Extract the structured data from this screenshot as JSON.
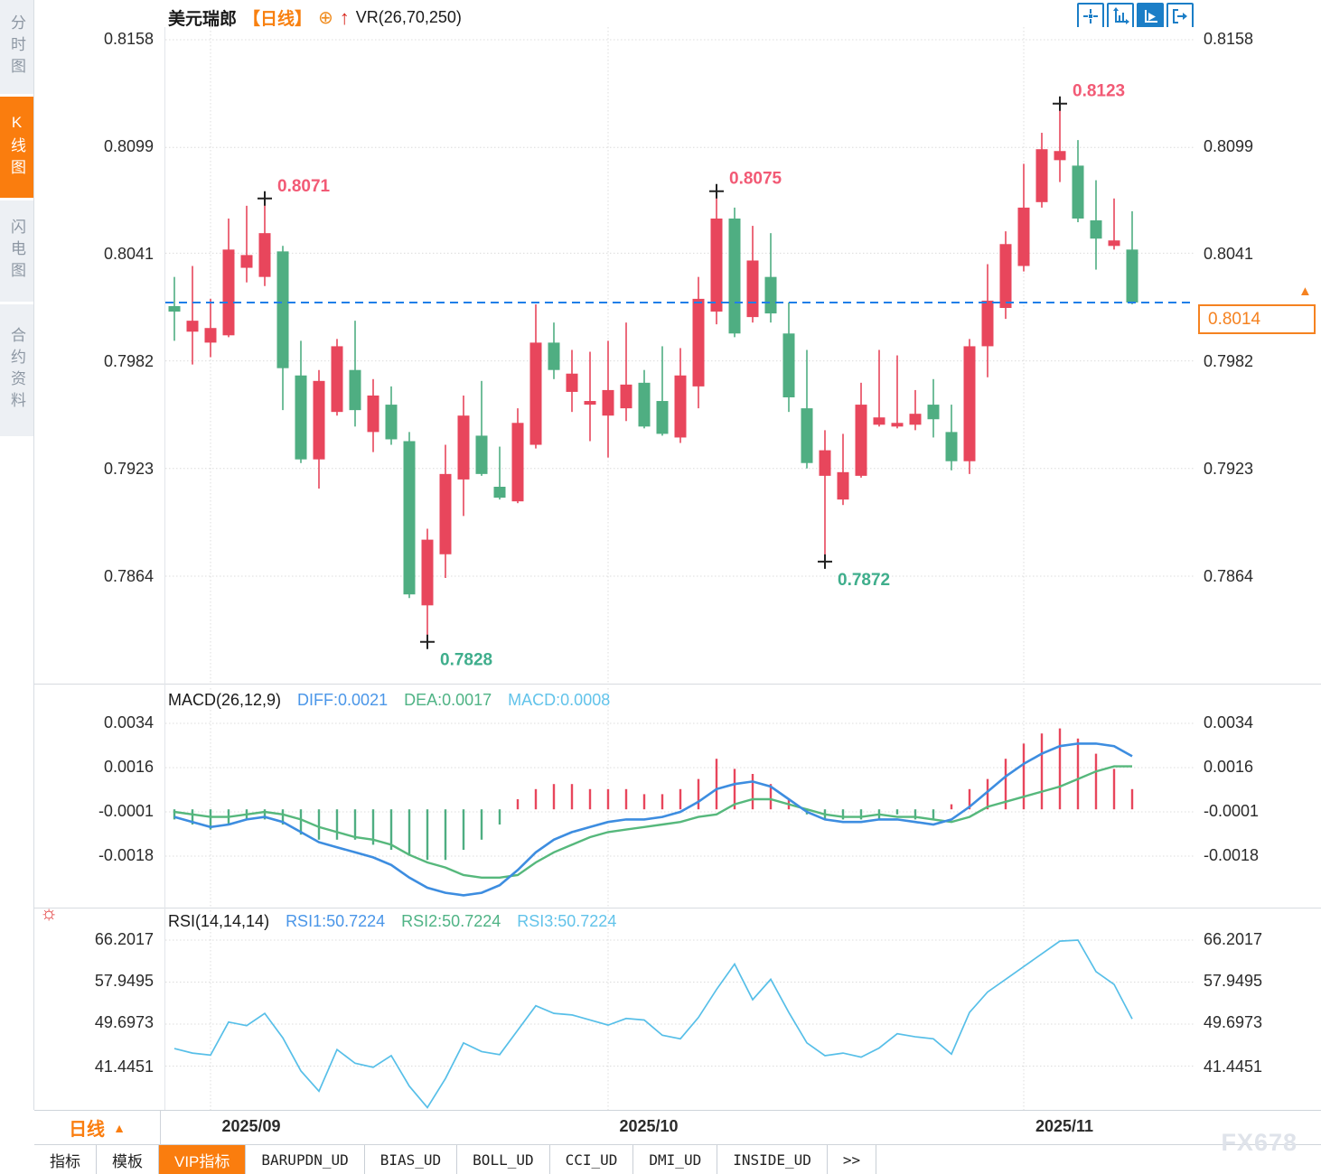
{
  "app": {
    "watermark": "FX678",
    "colors": {
      "up": "#e8465c",
      "down": "#4fae82",
      "accent_orange": "#fa7d0e",
      "dashed_line_blue": "#1f7fe8",
      "diff_blue": "#3d8de0",
      "dea_green": "#56b87c",
      "rsi_line_cyan": "#57bfe8",
      "annotation_high": "#f25a75",
      "annotation_low": "#3fae8c",
      "grid": "#dcdcdc"
    }
  },
  "sidebar": {
    "items": [
      {
        "label": "分时图",
        "active": false
      },
      {
        "label": "K线图",
        "active": true
      },
      {
        "label": "闪电图",
        "active": false
      },
      {
        "label": "合约资料",
        "active": false
      }
    ]
  },
  "header": {
    "symbol": "美元瑞郎",
    "period": "【日线】",
    "target_icon": "⊕",
    "arrow_icon": "↑",
    "indicator": "VR(26,70,250)"
  },
  "toolbar": {
    "buttons": [
      {
        "name": "crosshair-tool",
        "active": false
      },
      {
        "name": "axis-zoom-tool",
        "active": false
      },
      {
        "name": "auto-fit-tool",
        "active": true
      },
      {
        "name": "pan-tool",
        "active": false
      }
    ]
  },
  "current_price": {
    "value": "0.8014",
    "arrow": "▲"
  },
  "period_selector": {
    "label": "日线",
    "arrow": "▲"
  },
  "panels": {
    "main": {
      "y_labels": [
        "0.8158",
        "0.8099",
        "0.8041",
        "0.7982",
        "0.7923",
        "0.7864"
      ]
    },
    "macd": {
      "title": "MACD(26,12,9)",
      "diff_label": "DIFF:0.0021",
      "dea_label": "DEA:0.0017",
      "macd_label": "MACD:0.0008",
      "y_labels": [
        "0.0034",
        "0.0016",
        "-0.0001",
        "-0.0018"
      ]
    },
    "rsi": {
      "title": "RSI(14,14,14)",
      "rsi1_label": "RSI1:50.7224",
      "rsi2_label": "RSI2:50.7224",
      "rsi3_label": "RSI3:50.7224",
      "y_labels": [
        "66.2017",
        "57.9495",
        "49.6973",
        "41.4451"
      ]
    }
  },
  "bottom_tabs": {
    "items": [
      {
        "label": "指标",
        "active": false,
        "mono": false
      },
      {
        "label": "模板",
        "active": false,
        "mono": false
      },
      {
        "label": "VIP指标",
        "active": true,
        "mono": false
      },
      {
        "label": "BARUPDN_UD",
        "active": false,
        "mono": true
      },
      {
        "label": "BIAS_UD",
        "active": false,
        "mono": true
      },
      {
        "label": "BOLL_UD",
        "active": false,
        "mono": true
      },
      {
        "label": "CCI_UD",
        "active": false,
        "mono": true
      },
      {
        "label": "DMI_UD",
        "active": false,
        "mono": true
      },
      {
        "label": "INSIDE_UD",
        "active": false,
        "mono": true
      },
      {
        "label": ">>",
        "active": false,
        "mono": true
      }
    ]
  },
  "chart_data": [
    {
      "type": "candlestick",
      "title": "美元瑞郎 日线",
      "y_axis": {
        "min": 0.782,
        "max": 0.8165,
        "ticks": [
          0.8158,
          0.8099,
          0.8041,
          0.7982,
          0.7923,
          0.7864
        ]
      },
      "x_ticks": [
        {
          "label": "2025/09",
          "candle_index": 2
        },
        {
          "label": "2025/10",
          "candle_index": 24
        },
        {
          "label": "2025/11",
          "candle_index": 47
        }
      ],
      "current_price": 0.8014,
      "annotations": [
        {
          "candle_index": 5,
          "label": "0.8071",
          "type": "high"
        },
        {
          "candle_index": 30,
          "label": "0.8075",
          "type": "high"
        },
        {
          "candle_index": 49,
          "label": "0.8123",
          "type": "high"
        },
        {
          "candle_index": 14,
          "label": "0.7828",
          "type": "low"
        },
        {
          "candle_index": 36,
          "label": "0.7872",
          "type": "low"
        }
      ],
      "ohlc": [
        [
          0.8012,
          0.8028,
          0.7993,
          0.8009
        ],
        [
          0.7998,
          0.8034,
          0.798,
          0.8004
        ],
        [
          0.7992,
          0.8016,
          0.7984,
          0.8
        ],
        [
          0.7996,
          0.806,
          0.7995,
          0.8043
        ],
        [
          0.8033,
          0.8067,
          0.8025,
          0.804
        ],
        [
          0.8028,
          0.8071,
          0.8023,
          0.8052
        ],
        [
          0.8042,
          0.8045,
          0.7955,
          0.7978
        ],
        [
          0.7974,
          0.7993,
          0.7926,
          0.7928
        ],
        [
          0.7928,
          0.7977,
          0.7912,
          0.7971
        ],
        [
          0.7954,
          0.7994,
          0.7952,
          0.799
        ],
        [
          0.7977,
          0.8004,
          0.7946,
          0.7955
        ],
        [
          0.7943,
          0.7972,
          0.7932,
          0.7963
        ],
        [
          0.7958,
          0.7968,
          0.7936,
          0.7939
        ],
        [
          0.7938,
          0.7943,
          0.7852,
          0.7854
        ],
        [
          0.7848,
          0.789,
          0.7828,
          0.7884
        ],
        [
          0.7876,
          0.7936,
          0.7863,
          0.792
        ],
        [
          0.7917,
          0.7963,
          0.7897,
          0.7952
        ],
        [
          0.7941,
          0.7971,
          0.7919,
          0.792
        ],
        [
          0.7913,
          0.7935,
          0.7906,
          0.7907
        ],
        [
          0.7905,
          0.7956,
          0.7904,
          0.7948
        ],
        [
          0.7936,
          0.8013,
          0.7934,
          0.7992
        ],
        [
          0.7992,
          0.8003,
          0.7972,
          0.7977
        ],
        [
          0.7965,
          0.7988,
          0.7954,
          0.7975
        ],
        [
          0.7958,
          0.7987,
          0.7938,
          0.796
        ],
        [
          0.7952,
          0.7993,
          0.7929,
          0.7966
        ],
        [
          0.7956,
          0.8003,
          0.7949,
          0.7969
        ],
        [
          0.797,
          0.7977,
          0.7945,
          0.7946
        ],
        [
          0.796,
          0.799,
          0.7941,
          0.7942
        ],
        [
          0.794,
          0.7989,
          0.7937,
          0.7974
        ],
        [
          0.7968,
          0.8028,
          0.7956,
          0.8016
        ],
        [
          0.8009,
          0.8075,
          0.8002,
          0.806
        ],
        [
          0.806,
          0.8066,
          0.7995,
          0.7997
        ],
        [
          0.8006,
          0.8056,
          0.8003,
          0.8037
        ],
        [
          0.8028,
          0.8052,
          0.8003,
          0.8008
        ],
        [
          0.7997,
          0.8014,
          0.7954,
          0.7962
        ],
        [
          0.7956,
          0.7988,
          0.7923,
          0.7926
        ],
        [
          0.7919,
          0.7944,
          0.7872,
          0.7933
        ],
        [
          0.7906,
          0.7942,
          0.7903,
          0.7921
        ],
        [
          0.7919,
          0.797,
          0.7918,
          0.7958
        ],
        [
          0.7947,
          0.7988,
          0.7946,
          0.7951
        ],
        [
          0.7946,
          0.7985,
          0.7945,
          0.7948
        ],
        [
          0.7947,
          0.7966,
          0.7944,
          0.7953
        ],
        [
          0.7958,
          0.7972,
          0.794,
          0.795
        ],
        [
          0.7943,
          0.7958,
          0.7922,
          0.7927
        ],
        [
          0.7927,
          0.7994,
          0.792,
          0.799
        ],
        [
          0.799,
          0.8035,
          0.7973,
          0.8015
        ],
        [
          0.8011,
          0.8053,
          0.8005,
          0.8046
        ],
        [
          0.8034,
          0.809,
          0.8031,
          0.8066
        ],
        [
          0.8069,
          0.8107,
          0.8066,
          0.8098
        ],
        [
          0.8092,
          0.8123,
          0.808,
          0.8097
        ],
        [
          0.8089,
          0.8103,
          0.8058,
          0.806
        ],
        [
          0.8059,
          0.8081,
          0.8032,
          0.8049
        ],
        [
          0.8045,
          0.8071,
          0.8043,
          0.8048
        ],
        [
          0.8043,
          0.8064,
          0.8013,
          0.8014
        ]
      ]
    },
    {
      "type": "bar",
      "name": "MACD",
      "params": "(26,12,9)",
      "latest": {
        "DIFF": 0.0021,
        "DEA": 0.0017,
        "MACD": 0.0008
      },
      "y_ticks": [
        0.0034,
        0.0016,
        -0.0001,
        -0.0018
      ],
      "series": [
        {
          "name": "DIFF",
          "values": [
            -0.0003,
            -0.0005,
            -0.0007,
            -0.0006,
            -0.0004,
            -0.0003,
            -0.0005,
            -0.0009,
            -0.0013,
            -0.0015,
            -0.0017,
            -0.0019,
            -0.0022,
            -0.0027,
            -0.0031,
            -0.0033,
            -0.0034,
            -0.0033,
            -0.003,
            -0.0024,
            -0.0017,
            -0.0012,
            -0.0009,
            -0.0007,
            -0.0005,
            -0.0004,
            -0.0004,
            -0.0003,
            -0.0001,
            0.0003,
            0.0008,
            0.001,
            0.0011,
            0.0009,
            0.0004,
            -0.0001,
            -0.0004,
            -0.0005,
            -0.0005,
            -0.0004,
            -0.0004,
            -0.0005,
            -0.0006,
            -0.0004,
            0.0001,
            0.0007,
            0.0013,
            0.0018,
            0.0022,
            0.0025,
            0.0026,
            0.0026,
            0.0025,
            0.0021
          ]
        },
        {
          "name": "DEA",
          "values": [
            -0.0001,
            -0.0002,
            -0.0003,
            -0.0003,
            -0.0002,
            -0.0001,
            -0.0002,
            -0.0004,
            -0.0007,
            -0.0009,
            -0.0011,
            -0.0012,
            -0.0014,
            -0.0018,
            -0.0021,
            -0.0023,
            -0.0026,
            -0.0027,
            -0.0027,
            -0.0026,
            -0.0021,
            -0.0017,
            -0.0014,
            -0.0011,
            -0.0009,
            -0.0008,
            -0.0007,
            -0.0006,
            -0.0005,
            -0.0003,
            -0.0002,
            0.0002,
            0.0004,
            0.0004,
            0.0002,
            0.0,
            -0.0002,
            -0.0003,
            -0.0003,
            -0.0002,
            -0.0003,
            -0.0003,
            -0.0004,
            -0.0005,
            -0.0003,
            0.0001,
            0.0003,
            0.0005,
            0.0007,
            0.0009,
            0.0012,
            0.0015,
            0.0017,
            0.0017
          ]
        },
        {
          "name": "MACD_hist",
          "values": [
            -0.0004,
            -0.0006,
            -0.0008,
            -0.0006,
            -0.0004,
            -0.0004,
            -0.0006,
            -0.001,
            -0.0012,
            -0.0012,
            -0.0012,
            -0.0014,
            -0.0016,
            -0.0018,
            -0.002,
            -0.002,
            -0.0016,
            -0.0012,
            -0.0006,
            0.0004,
            0.0008,
            0.001,
            0.001,
            0.0008,
            0.0008,
            0.0008,
            0.0006,
            0.0006,
            0.0008,
            0.0012,
            0.002,
            0.0016,
            0.0014,
            0.001,
            0.0004,
            -0.0002,
            -0.0004,
            -0.0004,
            -0.0004,
            -0.0004,
            -0.0002,
            -0.0004,
            -0.0004,
            0.0002,
            0.0008,
            0.0012,
            0.002,
            0.0026,
            0.003,
            0.0032,
            0.0028,
            0.0022,
            0.0016,
            0.0008
          ]
        }
      ]
    },
    {
      "type": "line",
      "name": "RSI",
      "params": "(14,14,14)",
      "latest": {
        "RSI1": 50.7224,
        "RSI2": 50.7224,
        "RSI3": 50.7224
      },
      "y_ticks": [
        66.2017,
        57.9495,
        49.6973,
        41.4451
      ],
      "series": [
        {
          "name": "RSI",
          "values": [
            44.9,
            44.0,
            43.6,
            50.1,
            49.4,
            51.8,
            47.0,
            40.5,
            36.5,
            44.7,
            42.0,
            41.2,
            43.5,
            37.5,
            33.3,
            39.0,
            46.0,
            44.3,
            43.7,
            48.5,
            53.3,
            51.8,
            51.5,
            50.5,
            49.5,
            50.8,
            50.5,
            47.5,
            46.8,
            51.0,
            56.5,
            61.5,
            54.5,
            58.5,
            52.0,
            46.0,
            43.5,
            44.0,
            43.2,
            45.0,
            47.8,
            47.2,
            46.8,
            43.8,
            52.0,
            56.0,
            58.5,
            61.0,
            63.5,
            66.0,
            66.2,
            60.0,
            57.5,
            50.7224
          ]
        }
      ]
    }
  ]
}
